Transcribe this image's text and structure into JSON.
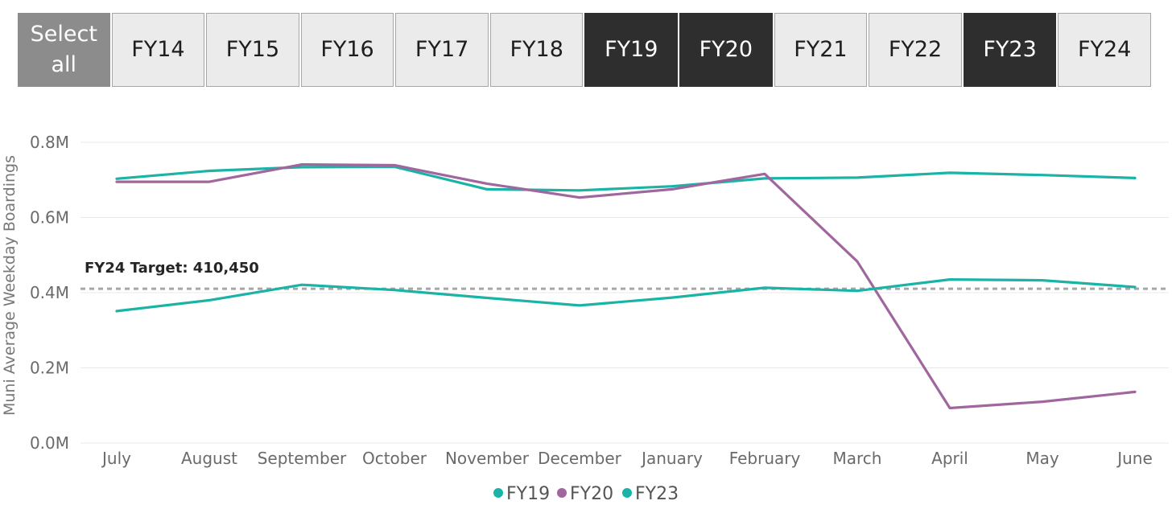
{
  "slicer": {
    "select_all": {
      "label": "Select all",
      "selected": false
    },
    "years": [
      {
        "label": "FY14",
        "selected": false
      },
      {
        "label": "FY15",
        "selected": false
      },
      {
        "label": "FY16",
        "selected": false
      },
      {
        "label": "FY17",
        "selected": false
      },
      {
        "label": "FY18",
        "selected": false
      },
      {
        "label": "FY19",
        "selected": true
      },
      {
        "label": "FY20",
        "selected": true
      },
      {
        "label": "FY21",
        "selected": false
      },
      {
        "label": "FY22",
        "selected": false
      },
      {
        "label": "FY23",
        "selected": true
      },
      {
        "label": "FY24",
        "selected": false
      }
    ]
  },
  "colors": {
    "FY19": "#1ab3a6",
    "FY20": "#a0669e",
    "FY23": "#1ab3a6",
    "target_line": "#a6a6a6",
    "grid": "#e8e8e8"
  },
  "chart_data": {
    "type": "line",
    "title": "",
    "xlabel": "",
    "ylabel": "Muni Average Weekday Boardings",
    "categories": [
      "July",
      "August",
      "September",
      "October",
      "November",
      "December",
      "January",
      "February",
      "March",
      "April",
      "May",
      "June"
    ],
    "ylim": [
      0,
      800000
    ],
    "y_ticks": [
      {
        "value": 0,
        "label": "0.0M"
      },
      {
        "value": 200000,
        "label": "0.2M"
      },
      {
        "value": 400000,
        "label": "0.4M"
      },
      {
        "value": 600000,
        "label": "0.6M"
      },
      {
        "value": 800000,
        "label": "0.8M"
      }
    ],
    "grid": true,
    "legend_position": "bottom",
    "series": [
      {
        "name": "FY19",
        "values": [
          703000,
          724000,
          734000,
          735000,
          675000,
          672000,
          683000,
          704000,
          706000,
          719000,
          713000,
          705000
        ]
      },
      {
        "name": "FY20",
        "values": [
          695000,
          695000,
          741000,
          739000,
          690000,
          653000,
          675000,
          716000,
          483000,
          93000,
          110000,
          136000
        ]
      },
      {
        "name": "FY23",
        "values": [
          351000,
          380000,
          421000,
          407000,
          386000,
          366000,
          387000,
          413000,
          405000,
          435000,
          433000,
          415000
        ]
      }
    ],
    "reference_line": {
      "value": 410450,
      "label": "FY24 Target: 410,450"
    }
  }
}
